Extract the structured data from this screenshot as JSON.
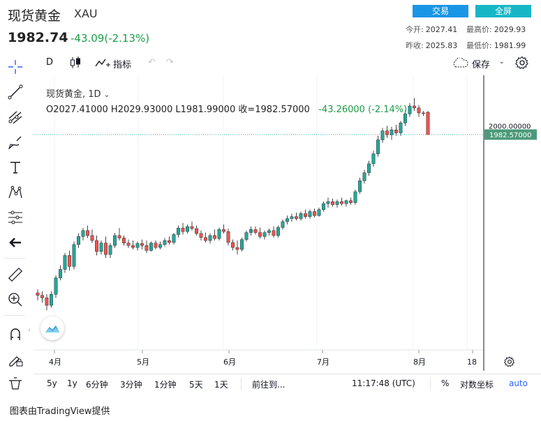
{
  "header": {
    "name": "现货黄金",
    "symbol": "XAU",
    "price": "1982.74",
    "change": "-43.09(-2.13%)",
    "trade_btn": "交易",
    "fullscreen_btn": "全屏",
    "open_label": "今开:",
    "open_value": "2027.41",
    "high_label": "最高价:",
    "high_value": "2029.93",
    "prev_label": "昨收:",
    "prev_value": "2025.83",
    "low_label": "最低价:",
    "low_value": "1981.99"
  },
  "toolbar": {
    "interval": "D",
    "indicators": "指标",
    "save": "保存"
  },
  "legend": {
    "title": "现货黄金, 1D",
    "ohlc": "O2027.41000  H2029.93000  L1981.99000  收=1982.57000",
    "change": "-43.26000 (-2.14%)"
  },
  "axis": {
    "price_tick": "2000.00000",
    "last_price": "1982.57000",
    "x_labels": [
      "4月",
      "5月",
      "6月",
      "7月",
      "8月",
      "18"
    ]
  },
  "footer": {
    "ranges": [
      "5y",
      "1y",
      "6分钟",
      "3分钟",
      "1分钟",
      "5天",
      "1天"
    ],
    "goto": "前往到...",
    "time": "11:17:48 (UTC)",
    "percent": "%",
    "log": "对数坐标",
    "auto": "auto"
  },
  "credit": "图表由TradingView提供",
  "colors": {
    "up": "#26a69a",
    "down": "#ef5350",
    "accent": "#2962ff",
    "trade": "#1a96e6",
    "full": "#17b6c7"
  },
  "chart_data": {
    "type": "candlestick",
    "y_reference": 2000.0,
    "last": 1982.57,
    "candles": [
      {
        "o": 1665,
        "h": 1672,
        "l": 1650,
        "c": 1660
      },
      {
        "o": 1660,
        "h": 1668,
        "l": 1645,
        "c": 1655
      },
      {
        "o": 1655,
        "h": 1662,
        "l": 1630,
        "c": 1640
      },
      {
        "o": 1640,
        "h": 1668,
        "l": 1635,
        "c": 1662
      },
      {
        "o": 1662,
        "h": 1700,
        "l": 1655,
        "c": 1695
      },
      {
        "o": 1695,
        "h": 1720,
        "l": 1690,
        "c": 1712
      },
      {
        "o": 1712,
        "h": 1745,
        "l": 1705,
        "c": 1740
      },
      {
        "o": 1740,
        "h": 1750,
        "l": 1710,
        "c": 1718
      },
      {
        "o": 1718,
        "h": 1768,
        "l": 1712,
        "c": 1762
      },
      {
        "o": 1762,
        "h": 1785,
        "l": 1755,
        "c": 1778
      },
      {
        "o": 1778,
        "h": 1795,
        "l": 1770,
        "c": 1790
      },
      {
        "o": 1790,
        "h": 1800,
        "l": 1775,
        "c": 1780
      },
      {
        "o": 1780,
        "h": 1792,
        "l": 1765,
        "c": 1770
      },
      {
        "o": 1770,
        "h": 1780,
        "l": 1740,
        "c": 1748
      },
      {
        "o": 1748,
        "h": 1770,
        "l": 1742,
        "c": 1765
      },
      {
        "o": 1765,
        "h": 1778,
        "l": 1735,
        "c": 1742
      },
      {
        "o": 1742,
        "h": 1765,
        "l": 1735,
        "c": 1760
      },
      {
        "o": 1760,
        "h": 1785,
        "l": 1755,
        "c": 1780
      },
      {
        "o": 1780,
        "h": 1795,
        "l": 1770,
        "c": 1775
      },
      {
        "o": 1775,
        "h": 1780,
        "l": 1760,
        "c": 1765
      },
      {
        "o": 1765,
        "h": 1772,
        "l": 1755,
        "c": 1760
      },
      {
        "o": 1760,
        "h": 1770,
        "l": 1752,
        "c": 1756
      },
      {
        "o": 1756,
        "h": 1768,
        "l": 1750,
        "c": 1764
      },
      {
        "o": 1764,
        "h": 1772,
        "l": 1752,
        "c": 1760
      },
      {
        "o": 1760,
        "h": 1770,
        "l": 1745,
        "c": 1750
      },
      {
        "o": 1750,
        "h": 1768,
        "l": 1748,
        "c": 1765
      },
      {
        "o": 1765,
        "h": 1770,
        "l": 1752,
        "c": 1756
      },
      {
        "o": 1756,
        "h": 1768,
        "l": 1752,
        "c": 1762
      },
      {
        "o": 1762,
        "h": 1775,
        "l": 1758,
        "c": 1770
      },
      {
        "o": 1770,
        "h": 1778,
        "l": 1762,
        "c": 1766
      },
      {
        "o": 1766,
        "h": 1785,
        "l": 1762,
        "c": 1782
      },
      {
        "o": 1782,
        "h": 1800,
        "l": 1776,
        "c": 1795
      },
      {
        "o": 1795,
        "h": 1805,
        "l": 1782,
        "c": 1788
      },
      {
        "o": 1788,
        "h": 1802,
        "l": 1784,
        "c": 1798
      },
      {
        "o": 1798,
        "h": 1808,
        "l": 1790,
        "c": 1794
      },
      {
        "o": 1794,
        "h": 1800,
        "l": 1780,
        "c": 1784
      },
      {
        "o": 1784,
        "h": 1790,
        "l": 1770,
        "c": 1776
      },
      {
        "o": 1776,
        "h": 1786,
        "l": 1766,
        "c": 1770
      },
      {
        "o": 1770,
        "h": 1784,
        "l": 1764,
        "c": 1780
      },
      {
        "o": 1780,
        "h": 1792,
        "l": 1770,
        "c": 1774
      },
      {
        "o": 1774,
        "h": 1796,
        "l": 1770,
        "c": 1792
      },
      {
        "o": 1792,
        "h": 1802,
        "l": 1784,
        "c": 1788
      },
      {
        "o": 1788,
        "h": 1794,
        "l": 1760,
        "c": 1766
      },
      {
        "o": 1766,
        "h": 1772,
        "l": 1750,
        "c": 1756
      },
      {
        "o": 1756,
        "h": 1770,
        "l": 1742,
        "c": 1752
      },
      {
        "o": 1752,
        "h": 1776,
        "l": 1748,
        "c": 1772
      },
      {
        "o": 1772,
        "h": 1790,
        "l": 1768,
        "c": 1786
      },
      {
        "o": 1786,
        "h": 1798,
        "l": 1780,
        "c": 1792
      },
      {
        "o": 1792,
        "h": 1798,
        "l": 1782,
        "c": 1786
      },
      {
        "o": 1786,
        "h": 1796,
        "l": 1774,
        "c": 1778
      },
      {
        "o": 1778,
        "h": 1790,
        "l": 1772,
        "c": 1786
      },
      {
        "o": 1786,
        "h": 1794,
        "l": 1780,
        "c": 1790
      },
      {
        "o": 1790,
        "h": 1798,
        "l": 1776,
        "c": 1780
      },
      {
        "o": 1780,
        "h": 1800,
        "l": 1776,
        "c": 1796
      },
      {
        "o": 1796,
        "h": 1812,
        "l": 1792,
        "c": 1808
      },
      {
        "o": 1808,
        "h": 1820,
        "l": 1802,
        "c": 1814
      },
      {
        "o": 1814,
        "h": 1824,
        "l": 1808,
        "c": 1818
      },
      {
        "o": 1818,
        "h": 1826,
        "l": 1810,
        "c": 1814
      },
      {
        "o": 1814,
        "h": 1828,
        "l": 1810,
        "c": 1824
      },
      {
        "o": 1824,
        "h": 1832,
        "l": 1814,
        "c": 1818
      },
      {
        "o": 1818,
        "h": 1832,
        "l": 1814,
        "c": 1828
      },
      {
        "o": 1828,
        "h": 1834,
        "l": 1816,
        "c": 1820
      },
      {
        "o": 1820,
        "h": 1836,
        "l": 1818,
        "c": 1832
      },
      {
        "o": 1832,
        "h": 1848,
        "l": 1828,
        "c": 1844
      },
      {
        "o": 1844,
        "h": 1856,
        "l": 1836,
        "c": 1848
      },
      {
        "o": 1848,
        "h": 1854,
        "l": 1838,
        "c": 1842
      },
      {
        "o": 1842,
        "h": 1852,
        "l": 1836,
        "c": 1848
      },
      {
        "o": 1848,
        "h": 1856,
        "l": 1840,
        "c": 1844
      },
      {
        "o": 1844,
        "h": 1852,
        "l": 1838,
        "c": 1850
      },
      {
        "o": 1850,
        "h": 1856,
        "l": 1842,
        "c": 1846
      },
      {
        "o": 1846,
        "h": 1872,
        "l": 1842,
        "c": 1868
      },
      {
        "o": 1868,
        "h": 1896,
        "l": 1864,
        "c": 1890
      },
      {
        "o": 1890,
        "h": 1912,
        "l": 1884,
        "c": 1906
      },
      {
        "o": 1906,
        "h": 1930,
        "l": 1900,
        "c": 1924
      },
      {
        "o": 1924,
        "h": 1950,
        "l": 1918,
        "c": 1944
      },
      {
        "o": 1944,
        "h": 1980,
        "l": 1938,
        "c": 1972
      },
      {
        "o": 1972,
        "h": 1996,
        "l": 1966,
        "c": 1990
      },
      {
        "o": 1990,
        "h": 2000,
        "l": 1976,
        "c": 1982
      },
      {
        "o": 1982,
        "h": 1998,
        "l": 1972,
        "c": 1992
      },
      {
        "o": 1992,
        "h": 2002,
        "l": 1980,
        "c": 1986
      },
      {
        "o": 1986,
        "h": 2010,
        "l": 1980,
        "c": 2006
      },
      {
        "o": 2006,
        "h": 2030,
        "l": 2000,
        "c": 2024
      },
      {
        "o": 2024,
        "h": 2046,
        "l": 2018,
        "c": 2040
      },
      {
        "o": 2040,
        "h": 2056,
        "l": 2030,
        "c": 2036
      },
      {
        "o": 2036,
        "h": 2042,
        "l": 2018,
        "c": 2026
      },
      {
        "o": 2026,
        "h": 2030,
        "l": 2020,
        "c": 2025
      },
      {
        "o": 2027.41,
        "h": 2029.93,
        "l": 1981.99,
        "c": 1982.57
      }
    ]
  }
}
